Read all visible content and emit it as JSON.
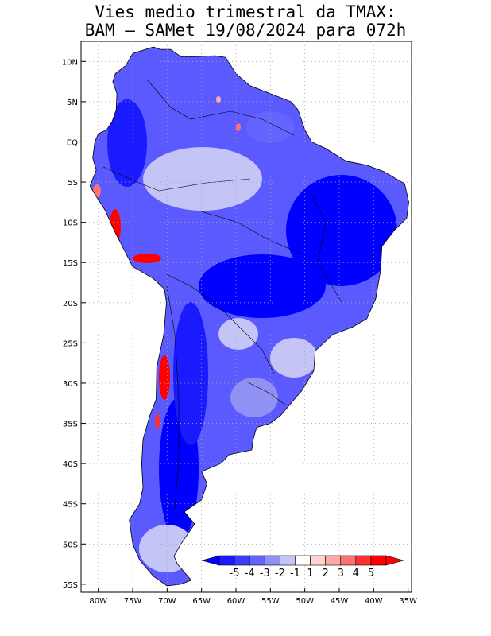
{
  "title": {
    "line1": "Vies medio trimestral da TMAX:",
    "line2": "BAM – SAMet 19/08/2024  para 072h"
  },
  "map": {
    "lat_ticks": [
      "10N",
      "5N",
      "EQ",
      "5S",
      "10S",
      "15S",
      "20S",
      "25S",
      "30S",
      "35S",
      "40S",
      "45S",
      "50S",
      "55S"
    ],
    "lat_values": [
      10,
      5,
      0,
      -5,
      -10,
      -15,
      -20,
      -25,
      -30,
      -35,
      -40,
      -45,
      -50,
      -55
    ],
    "lon_ticks": [
      "80W",
      "75W",
      "70W",
      "65W",
      "60W",
      "55W",
      "50W",
      "45W",
      "40W",
      "35W"
    ],
    "lon_values": [
      -80,
      -75,
      -70,
      -65,
      -60,
      -55,
      -50,
      -45,
      -40,
      -35
    ],
    "lon_range": [
      -82.5,
      -34.5
    ],
    "lat_range": [
      -56,
      12.5
    ],
    "grid": true
  },
  "colorbar": {
    "labels": [
      "-5",
      "-4",
      "-3",
      "-2",
      "-1",
      "1",
      "2",
      "3",
      "4",
      "5"
    ],
    "colors": [
      "#1a1aff",
      "#3c3cff",
      "#6464ff",
      "#9090f5",
      "#c4c4f7",
      "#ffffff",
      "#ffd4d4",
      "#ffa8a8",
      "#ff7070",
      "#ff3030",
      "#ff0000"
    ],
    "underflow_color": "#0000ff",
    "overflow_color": "#ff0000"
  },
  "colors": {
    "ocean": "#ffffff",
    "border": "#000000",
    "grid": "#aaaaaa"
  }
}
